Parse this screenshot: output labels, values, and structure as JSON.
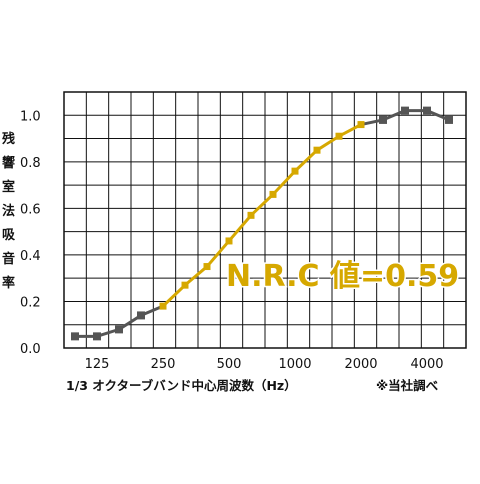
{
  "chart_data": {
    "type": "line",
    "ylabel": "残響室法吸音率",
    "xlabel": "1/3 オクターブバンド中心周波数（Hz）",
    "note": "※当社調べ",
    "annotation": "N.R.C 値=0.59",
    "x_tick_labels": [
      "125",
      "250",
      "500",
      "1000",
      "2000",
      "4000"
    ],
    "y_tick_labels": [
      "0.0",
      "0.2",
      "0.4",
      "0.6",
      "0.8",
      "1.0"
    ],
    "ylim": [
      0,
      1.1
    ],
    "grid": true,
    "x": [
      "100",
      "125",
      "160",
      "200",
      "250",
      "315",
      "400",
      "500",
      "630",
      "800",
      "1000",
      "1250",
      "1600",
      "2000",
      "2500",
      "3150",
      "4000",
      "5000"
    ],
    "series": [
      {
        "values": [
          0.05,
          0.05,
          0.08,
          0.14,
          0.18,
          0.27,
          0.35,
          0.46,
          0.57,
          0.66,
          0.76,
          0.85,
          0.91,
          0.96,
          0.98,
          1.02,
          1.02,
          0.98
        ]
      }
    ],
    "colors": {
      "highlight": "#d6a800",
      "base": "#555555",
      "grid": "#111111"
    }
  }
}
